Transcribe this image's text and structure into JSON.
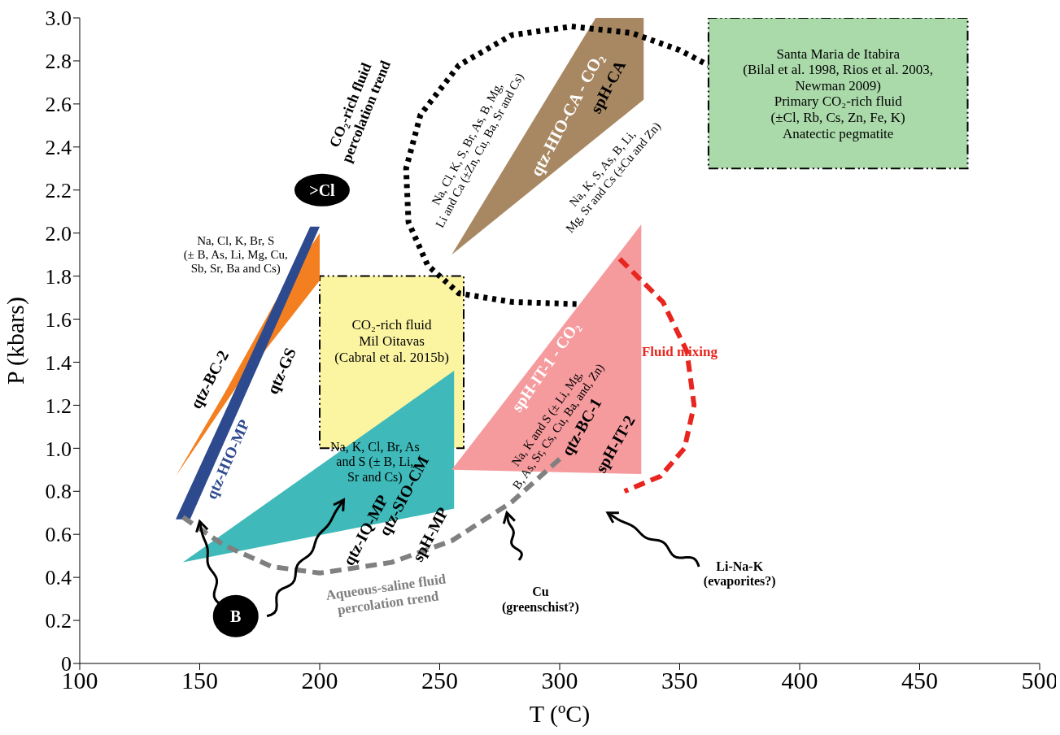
{
  "chart_data": {
    "type": "area",
    "xlabel": "T (ºC)",
    "ylabel": "P (kbars)",
    "xlim": [
      100,
      500
    ],
    "xticks": [
      100,
      150,
      200,
      250,
      300,
      350,
      400,
      450,
      500
    ],
    "ylim": [
      0,
      3
    ],
    "yticks": [
      0,
      0.2,
      0.4,
      0.6,
      0.8,
      {
        "value": 1,
        "label": "1.0"
      },
      1.2,
      1.4,
      1.6,
      1.8,
      {
        "value": 2,
        "label": "2.0"
      },
      2.2,
      2.4,
      2.6,
      2.8,
      {
        "value": 3,
        "label": "3.0"
      }
    ],
    "marker": "none",
    "series": [
      {
        "color": "#fbf5a2",
        "line_style": "dashed",
        "x": [
          200,
          260,
          260,
          200
        ],
        "values": [
          1.0,
          1.0,
          1.8,
          1.8
        ]
      },
      {
        "color": "#aad9aa",
        "line_style": "dashed",
        "x": [
          362,
          470,
          470,
          362
        ],
        "values": [
          2.3,
          2.3,
          3.0,
          3.0
        ]
      },
      {
        "color": "#f47f20",
        "x": [
          140,
          165,
          200,
          200,
          185,
          160
        ],
        "values": [
          0.87,
          1.28,
          1.78,
          2.0,
          1.75,
          1.25
        ]
      },
      {
        "color": "#2e4a8e",
        "x": [
          140,
          196,
          200,
          146
        ],
        "values": [
          0.67,
          2.03,
          2.03,
          0.67
        ]
      },
      {
        "color": "#3fb9b9",
        "x": [
          143,
          256,
          256
        ],
        "values": [
          0.47,
          1.36,
          0.72
        ]
      },
      {
        "color": "#f59a9d",
        "x": [
          255,
          334,
          334
        ],
        "values": [
          0.9,
          2.04,
          0.88
        ]
      },
      {
        "color": "#a88862",
        "x": [
          255,
          315,
          335,
          335
        ],
        "values": [
          1.9,
          3.0,
          3.0,
          2.62
        ]
      },
      {
        "type": "line",
        "color": "#000000",
        "line_style": "dotted",
        "x": [
          307,
          280,
          258,
          245,
          237,
          236,
          242,
          258,
          280,
          305,
          330,
          350,
          362
        ],
        "values": [
          1.67,
          1.68,
          1.72,
          1.85,
          2.05,
          2.3,
          2.55,
          2.78,
          2.92,
          2.96,
          2.93,
          2.85,
          2.78
        ]
      },
      {
        "type": "line",
        "color": "#808080",
        "line_style": "dashed",
        "x": [
          143,
          160,
          180,
          200,
          230,
          255,
          280,
          300
        ],
        "values": [
          0.68,
          0.55,
          0.45,
          0.42,
          0.47,
          0.57,
          0.75,
          0.95
        ]
      },
      {
        "type": "line",
        "color": "#e8251f",
        "line_style": "dashed",
        "x": [
          325,
          343,
          353,
          356,
          352,
          342,
          327
        ],
        "values": [
          1.88,
          1.68,
          1.45,
          1.2,
          1.0,
          0.87,
          0.8
        ]
      }
    ],
    "annotations": [
      "CO₂-rich fluid\npercolation trend",
      "Na, Cl, K, S, Br, As, B, Mg,\nLi and Ca (±Zn, Cu, Ba, Sr and Cs)",
      "qtz-HIO-CA - CO₂",
      "spH-CA",
      "Na, K, S, As, B, Li,\nMg, Sr and Cs (±Cu and Zn)",
      "Santa Maria de Itabira\n(Bilal et al. 1998, Rios et al. 2003,\nNewman 2009)\nPrimary CO₂-rich fluid\n(±Cl, Rb, Cs, Zn, Fe, K)\nAnatectic pegmatite",
      ">Cl",
      "Na, Cl, K, Br, S\n(± B, As, Li, Mg, Cu,\nSb, Sr, Ba and Cs)",
      "qtz-BC-2",
      "qtz-HIO-MP",
      "qtz-GS",
      "CO₂-rich fluid\nMil Oitavas\n(Cabral et al. 2015b)",
      "Na, K, Cl, Br, As\nand S (± B, Li,\nSr and Cs)",
      "qtz-IQ-MP",
      "qtz-SIO-CM",
      "spH-MP",
      "spH-IT-1 - CO₂",
      "Na, K and S (± Li, Mg,\nB, As, Sr, Cs, Cu, Ba, and, Zn)",
      "qtz-BC-1",
      "spH-IT-2",
      "Fluid mixing",
      "Aqueous-saline fluid\npercolation trend",
      "Cu\n(greenschist?)",
      "Li-Na-K\n(evaporites?)",
      "B"
    ]
  }
}
